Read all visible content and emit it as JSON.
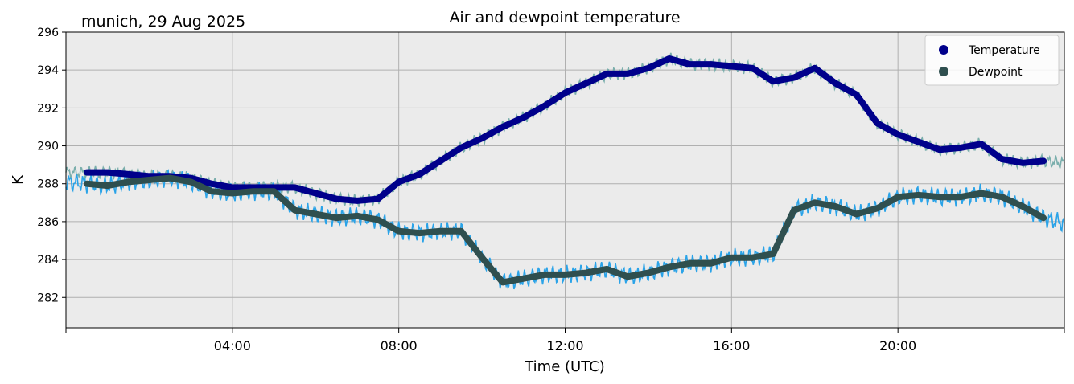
{
  "chart_data": {
    "type": "line",
    "title": "Air and dewpoint temperature",
    "subtitle": "munich, 29 Aug 2025",
    "xlabel": "Time (UTC)",
    "ylabel": "K",
    "xlim": [
      0,
      24
    ],
    "ylim": [
      280.4,
      296
    ],
    "yticks": [
      282,
      284,
      286,
      288,
      290,
      292,
      294,
      296
    ],
    "yticklabels": [
      "282",
      "284",
      "286",
      "288",
      "290",
      "292",
      "294",
      "296"
    ],
    "xticks": [
      0,
      4,
      8,
      12,
      16,
      20,
      24
    ],
    "xticklabels": [
      "",
      "04:00",
      "08:00",
      "12:00",
      "16:00",
      "20:00",
      ""
    ],
    "grid": true,
    "legend_position": "top-right",
    "series": [
      {
        "name": "Temperature",
        "raw_color": "#7aaeac",
        "smooth_color": "#00008b",
        "x": [
          0.0,
          0.5,
          1.0,
          1.5,
          2.0,
          2.5,
          3.0,
          3.5,
          4.0,
          4.5,
          5.0,
          5.5,
          6.0,
          6.5,
          7.0,
          7.5,
          8.0,
          8.5,
          9.0,
          9.5,
          10.0,
          10.5,
          11.0,
          11.5,
          12.0,
          12.5,
          13.0,
          13.5,
          14.0,
          14.5,
          15.0,
          15.5,
          16.0,
          16.5,
          17.0,
          17.5,
          18.0,
          18.5,
          19.0,
          19.5,
          20.0,
          20.5,
          21.0,
          21.5,
          22.0,
          22.5,
          23.0,
          23.5,
          24.0
        ],
        "values": [
          288.6,
          288.6,
          288.6,
          288.5,
          288.4,
          288.4,
          288.3,
          288.0,
          287.8,
          287.8,
          287.8,
          287.8,
          287.5,
          287.2,
          287.1,
          287.2,
          288.1,
          288.5,
          289.2,
          289.9,
          290.4,
          291.0,
          291.5,
          292.1,
          292.8,
          293.3,
          293.8,
          293.8,
          294.1,
          294.6,
          294.3,
          294.3,
          294.2,
          294.1,
          293.4,
          293.6,
          294.1,
          293.3,
          292.7,
          291.2,
          290.6,
          290.2,
          289.8,
          289.9,
          290.1,
          289.3,
          289.1,
          289.2,
          289.1
        ]
      },
      {
        "name": "Dewpoint",
        "raw_color": "#2aa3e8",
        "smooth_color": "#2f4f4f",
        "x": [
          0.0,
          0.5,
          1.0,
          1.5,
          2.0,
          2.5,
          3.0,
          3.5,
          4.0,
          4.5,
          5.0,
          5.5,
          6.0,
          6.5,
          7.0,
          7.5,
          8.0,
          8.5,
          9.0,
          9.5,
          10.0,
          10.5,
          11.0,
          11.5,
          12.0,
          12.5,
          13.0,
          13.5,
          14.0,
          14.5,
          15.0,
          15.5,
          16.0,
          16.5,
          17.0,
          17.5,
          18.0,
          18.5,
          19.0,
          19.5,
          20.0,
          20.5,
          21.0,
          21.5,
          22.0,
          22.5,
          23.0,
          23.5,
          24.0
        ],
        "values": [
          288.1,
          288.0,
          287.9,
          288.1,
          288.2,
          288.3,
          288.1,
          287.6,
          287.5,
          287.6,
          287.6,
          286.6,
          286.4,
          286.2,
          286.3,
          286.1,
          285.5,
          285.4,
          285.5,
          285.5,
          284.1,
          282.8,
          283.0,
          283.2,
          283.2,
          283.3,
          283.5,
          283.1,
          283.3,
          283.6,
          283.8,
          283.8,
          284.1,
          284.1,
          284.3,
          286.6,
          287.0,
          286.8,
          286.4,
          286.7,
          287.3,
          287.4,
          287.3,
          287.3,
          287.5,
          287.3,
          286.8,
          286.2,
          285.9
        ]
      }
    ]
  }
}
